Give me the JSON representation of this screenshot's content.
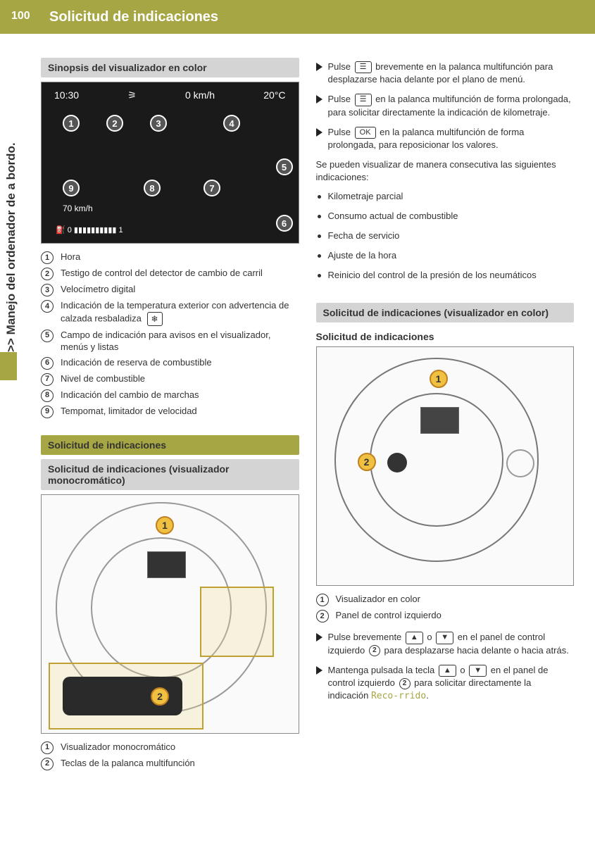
{
  "page_number": "100",
  "header_title": "Solicitud de indicaciones",
  "side_label": ">> Manejo del ordenador de a bordo.",
  "left": {
    "section1_title": "Sinopsis del visualizador en color",
    "display": {
      "time": "10:30",
      "speed": "0 km/h",
      "temp": "20°C",
      "cruise": "70 km/h"
    },
    "legend": [
      {
        "n": "1",
        "text": "Hora"
      },
      {
        "n": "2",
        "text": "Testigo de control del detector de cambio de carril"
      },
      {
        "n": "3",
        "text": "Velocímetro digital"
      },
      {
        "n": "4",
        "text": "Indicación de la temperatura exterior con advertencia de calzada resbaladiza",
        "snow": true
      },
      {
        "n": "5",
        "text": "Campo de indicación para avisos en el visualizador, menús y listas"
      },
      {
        "n": "6",
        "text": "Indicación de reserva de combustible"
      },
      {
        "n": "7",
        "text": "Nivel de combustible"
      },
      {
        "n": "8",
        "text": "Indicación del cambio de marchas"
      },
      {
        "n": "9",
        "text": "Tempomat, limitador de velocidad"
      }
    ],
    "section2_title": "Solicitud de indicaciones",
    "section3_title": "Solicitud de indicaciones (visualizador monocromático)",
    "legend2": [
      {
        "n": "1",
        "text": "Visualizador monocromático"
      },
      {
        "n": "2",
        "text": "Teclas de la palanca multifunción"
      }
    ]
  },
  "right": {
    "bullets1": [
      {
        "pre": "Pulse ",
        "key": "☰",
        "post": " brevemente en la palanca multifunción para desplazarse hacia delante por el plano de menú."
      },
      {
        "pre": "Pulse ",
        "key": "☰",
        "post": " en la palanca multifunción de forma prolongada, para solicitar directamente la indicación de kilometraje."
      },
      {
        "pre": "Pulse ",
        "key": "OK",
        "post": " en la palanca multifunción de forma prolongada, para reposicionar los valores."
      }
    ],
    "para1": "Se pueden visualizar de manera consecutiva las siguientes indicaciones:",
    "dotlist": [
      "Kilometraje parcial",
      "Consumo actual de combustible",
      "Fecha de servicio",
      "Ajuste de la hora",
      "Reinicio del control de la presión de los neumáticos"
    ],
    "section_title": "Solicitud de indicaciones (visualizador en color)",
    "sub_title": "Solicitud de indicaciones",
    "legend": [
      {
        "n": "1",
        "text": "Visualizador en color"
      },
      {
        "n": "2",
        "text": "Panel de control izquierdo"
      }
    ],
    "b2_pre": "Pulse brevemente ",
    "b2_k1": "▲",
    "b2_mid": " o ",
    "b2_k2": "▼",
    "b2_post_a": " en el panel de control izquierdo ",
    "b2_post_b": " para desplazarse hacia delante o hacia atrás.",
    "b3_pre": "Mantenga pulsada la tecla ",
    "b3_k1": "▲",
    "b3_mid": " o ",
    "b3_k2": "▼",
    "b3_post_a": " en el panel de control izquierdo ",
    "b3_post_b": " para solicitar directamente la indicación ",
    "b3_olive": "Reco‐rrido",
    "b3_post_c": "."
  }
}
